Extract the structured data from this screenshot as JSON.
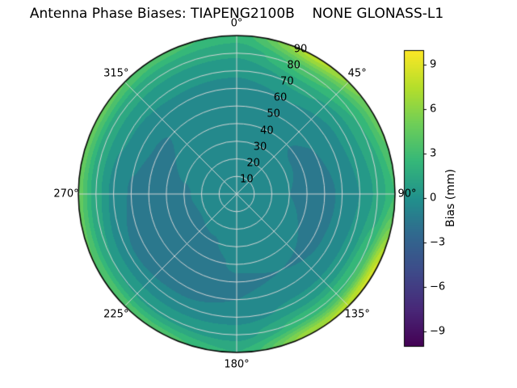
{
  "title": "Antenna Phase Biases: TIAPENG2100B    NONE GLONASS-L1",
  "chart_data": {
    "type": "heatmap",
    "projection": "polar",
    "title": "Antenna Phase Biases: TIAPENG2100B    NONE GLONASS-L1",
    "theta_zero": "top",
    "theta_direction": "clockwise",
    "angular_ticks_deg": [
      0,
      45,
      90,
      135,
      180,
      225,
      270,
      315
    ],
    "angular_tick_labels": [
      "0°",
      "45°",
      "90°",
      "135°",
      "180°",
      "225°",
      "270°",
      "315°"
    ],
    "radial_ticks": [
      10,
      20,
      30,
      40,
      50,
      60,
      70,
      80,
      90
    ],
    "radial_tick_labels": [
      "10",
      "20",
      "30",
      "40",
      "50",
      "60",
      "70",
      "80",
      "90"
    ],
    "radial_label_angle_deg": 22.5,
    "radial_max": 90,
    "grid": true,
    "colorbar": {
      "label": "Bias (mm)",
      "ticks": [
        9,
        6,
        3,
        0,
        -3,
        -6,
        -9
      ],
      "tick_labels": [
        "9",
        "6",
        "3",
        "0",
        "−3",
        "−6",
        "−9"
      ],
      "range": [
        -10,
        10
      ],
      "colormap": "viridis"
    },
    "grid_azimuth_deg": [
      0,
      30,
      60,
      90,
      120,
      150,
      180,
      210,
      240,
      270,
      300,
      330
    ],
    "grid_radius": [
      0,
      10,
      20,
      30,
      40,
      50,
      60,
      70,
      80,
      90
    ],
    "bias_mm": [
      [
        -0.3,
        -0.3,
        -0.3,
        -0.3,
        -0.3,
        -0.3,
        -0.3,
        -0.3,
        -0.3,
        -0.3,
        -0.3,
        -0.3
      ],
      [
        -0.4,
        -0.4,
        -0.4,
        -0.4,
        -0.4,
        -0.4,
        -0.4,
        -0.4,
        -0.4,
        -0.4,
        -0.4,
        -0.4
      ],
      [
        -0.5,
        -0.5,
        -0.6,
        -0.7,
        -0.6,
        -0.5,
        -0.5,
        -0.7,
        -0.9,
        -0.8,
        -0.6,
        -0.5
      ],
      [
        -0.6,
        -0.7,
        -0.9,
        -1.0,
        -0.8,
        -0.6,
        -0.7,
        -1.1,
        -1.3,
        -1.1,
        -0.8,
        -0.6
      ],
      [
        -0.7,
        -0.8,
        -1.1,
        -1.2,
        -1.0,
        -0.8,
        -0.9,
        -1.4,
        -1.7,
        -1.4,
        -1.0,
        -0.7
      ],
      [
        -0.7,
        -0.6,
        -1.0,
        -1.2,
        -1.1,
        -1.0,
        -1.1,
        -1.7,
        -1.9,
        -1.5,
        -1.1,
        -0.7
      ],
      [
        -0.4,
        0.0,
        -0.6,
        -0.9,
        -0.9,
        -0.8,
        -1.0,
        -1.4,
        -1.6,
        -1.1,
        -0.7,
        -0.4
      ],
      [
        0.2,
        1.2,
        0.4,
        0.0,
        0.3,
        0.2,
        -0.4,
        -0.7,
        -0.8,
        -0.3,
        0.1,
        0.3
      ],
      [
        1.2,
        3.5,
        2.0,
        1.2,
        3.0,
        2.5,
        0.6,
        0.8,
        1.0,
        1.4,
        1.5,
        1.3
      ],
      [
        2.5,
        7.5,
        4.5,
        3.0,
        8.5,
        7.0,
        2.0,
        3.5,
        4.0,
        4.5,
        4.5,
        3.5
      ]
    ]
  },
  "colors": {
    "background": "#ffffff",
    "grid_line": "#d8d8d8",
    "outline": "#000000",
    "viridis_min": "#440154",
    "viridis_mid": "#21918c",
    "viridis_max": "#fde725"
  }
}
